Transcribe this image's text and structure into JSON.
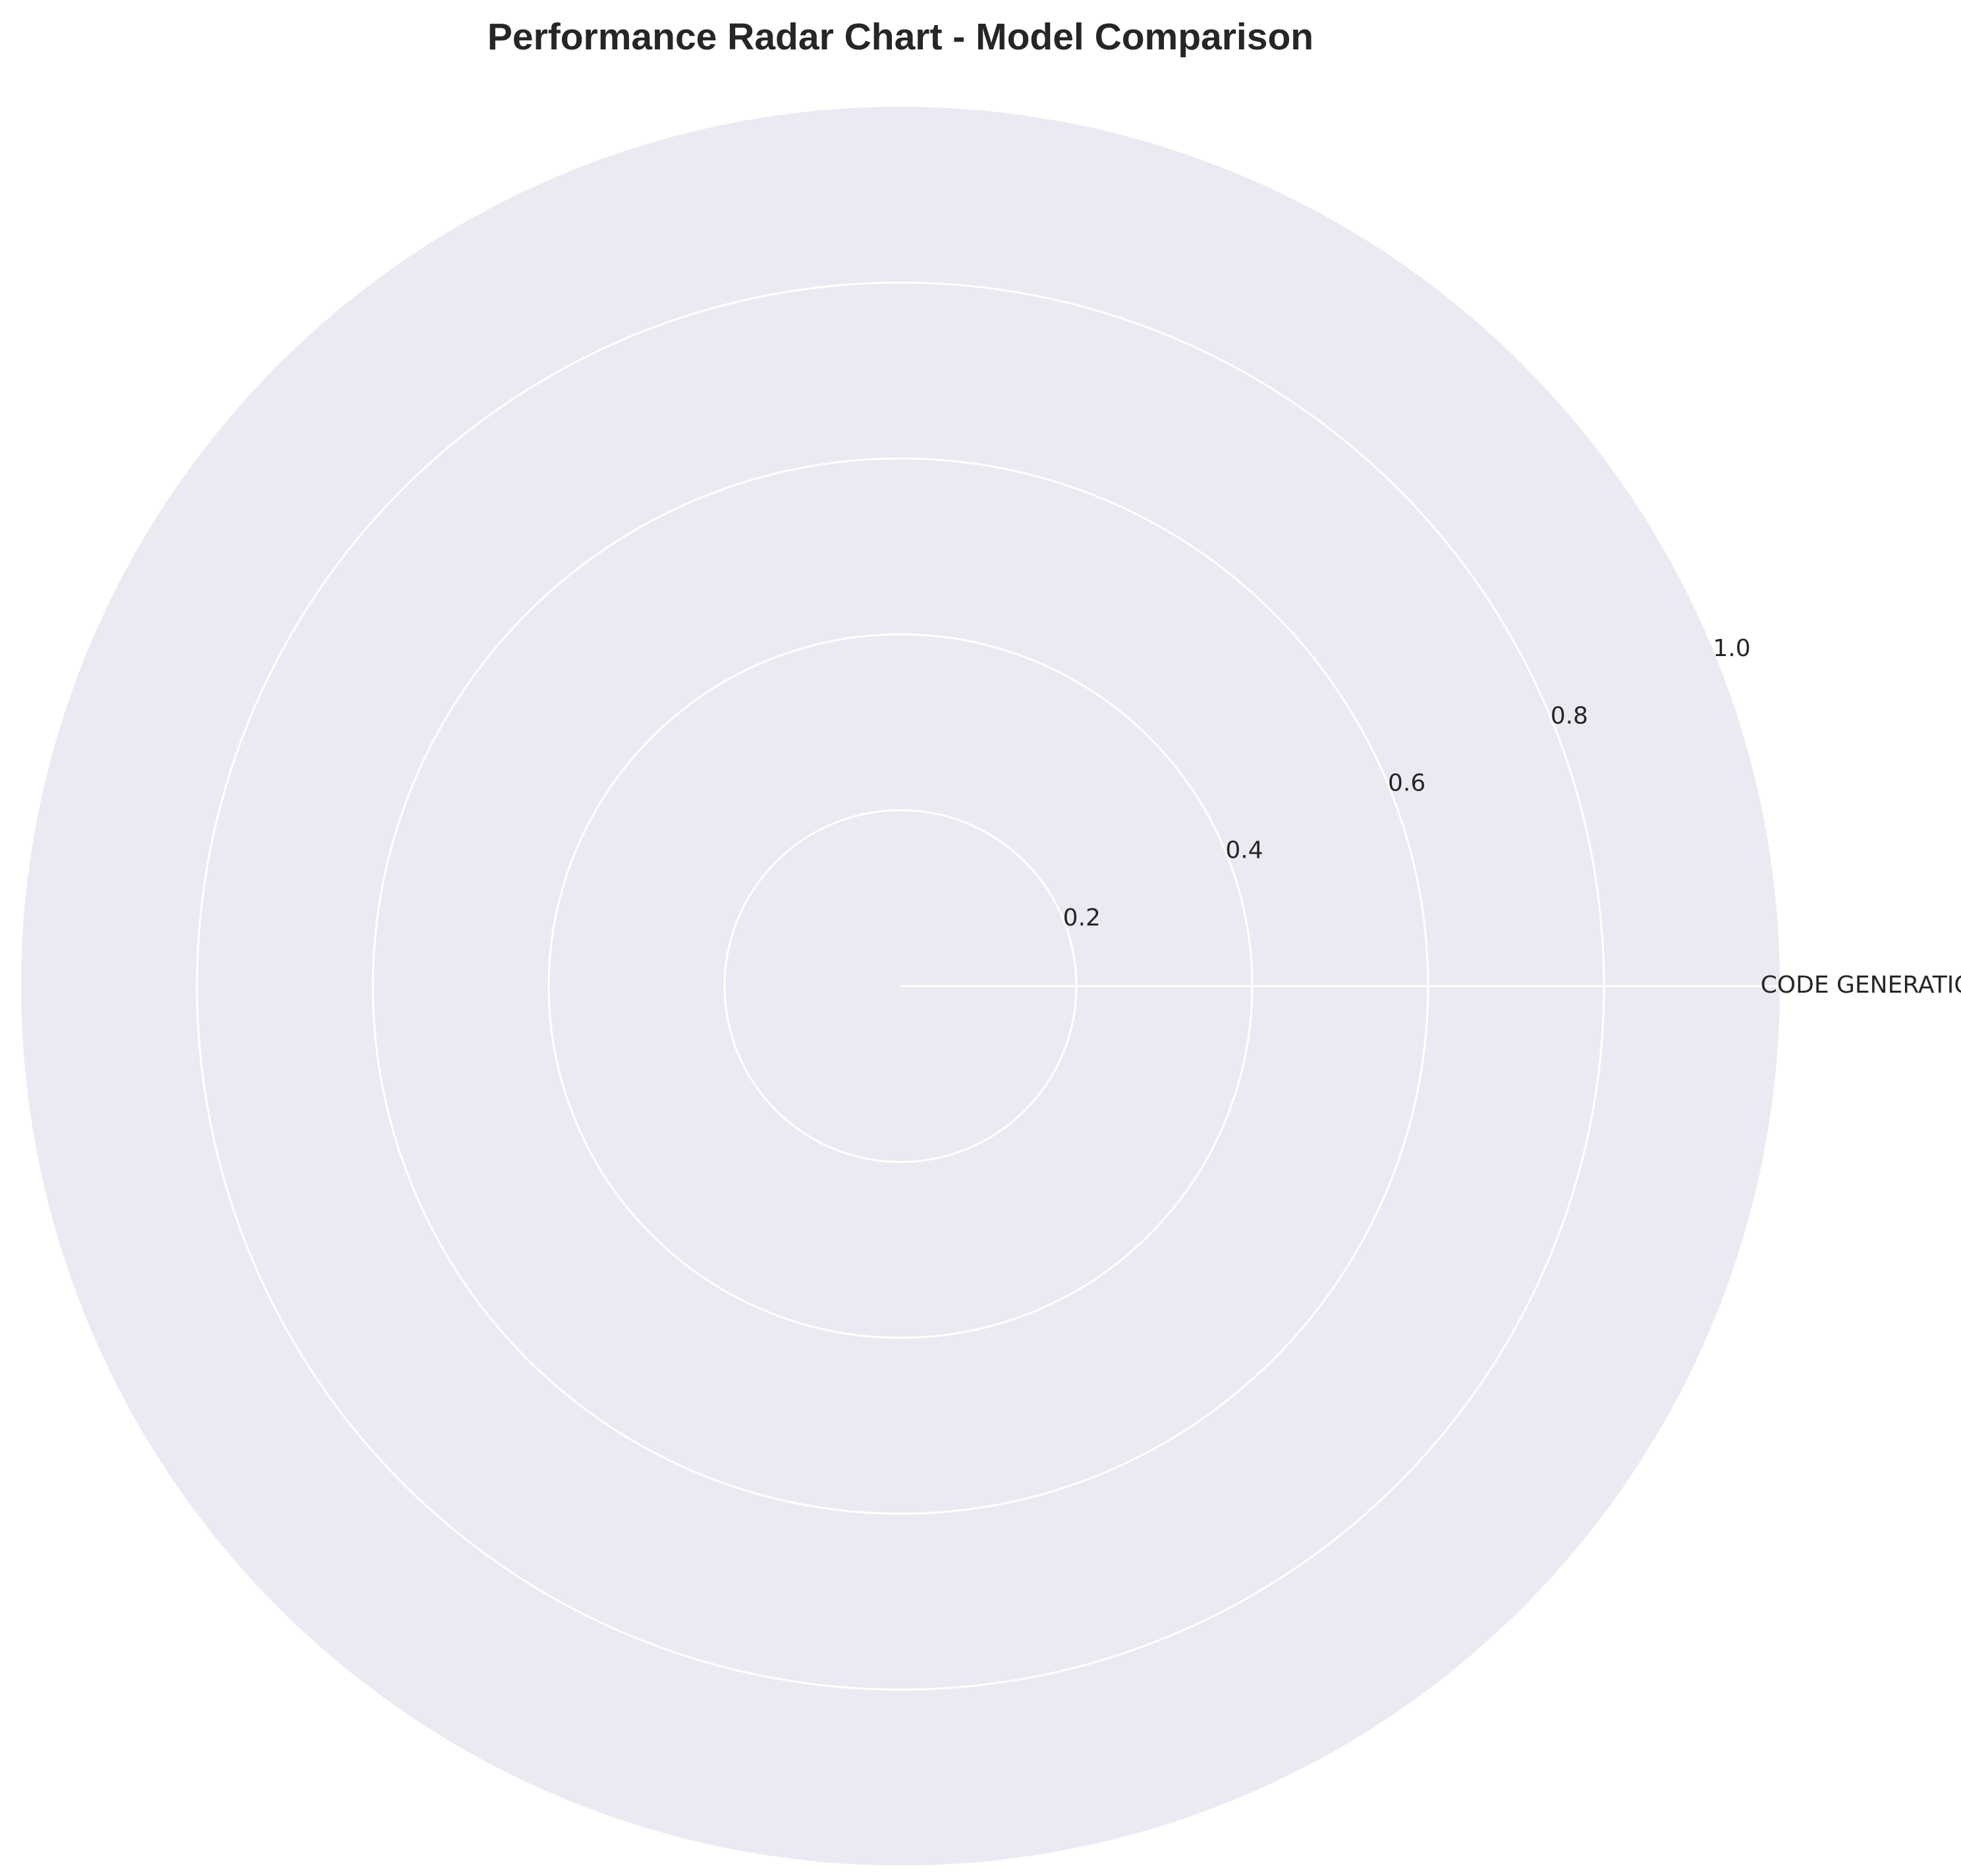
{
  "chart_data": {
    "type": "radar",
    "title": "Performance Radar Chart - Model Comparison",
    "categories": [
      "CODE GENERATION"
    ],
    "series": [],
    "rlim": [
      0,
      1.0
    ],
    "r_ticks": [
      "0.2",
      "0.4",
      "0.6",
      "0.8",
      "1.0"
    ],
    "grid": true,
    "colors": {
      "background": "#eaeaf2",
      "grid": "#ffffff",
      "text": "#262626"
    }
  }
}
